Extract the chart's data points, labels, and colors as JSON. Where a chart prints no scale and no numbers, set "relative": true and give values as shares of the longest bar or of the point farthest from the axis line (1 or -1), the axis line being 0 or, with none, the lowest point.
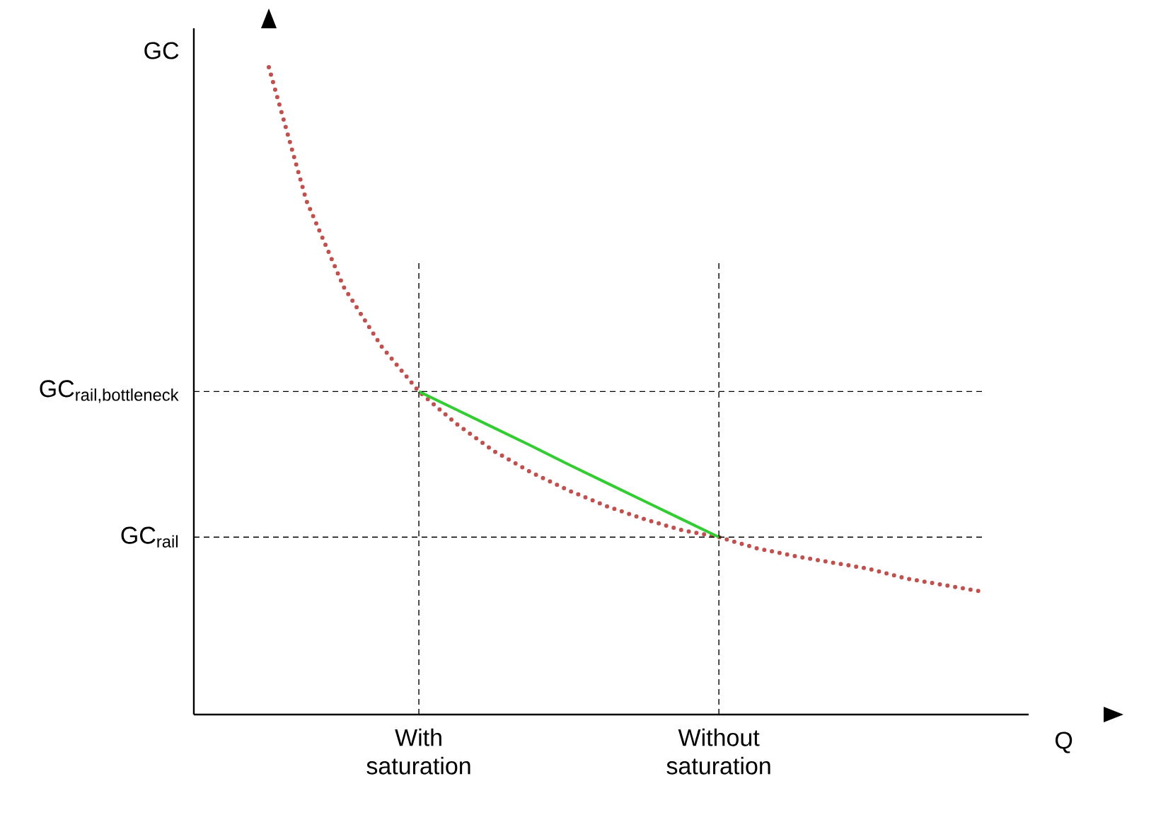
{
  "chart_data": {
    "type": "line",
    "relative": true,
    "xlabel": "Q",
    "ylabel": "GC",
    "marker": "none",
    "categories": [
      null,
      null,
      null,
      null,
      "With saturation",
      null,
      null,
      null,
      null,
      null,
      null,
      null,
      "Without saturation",
      null,
      null,
      null,
      null,
      null,
      null,
      null
    ],
    "series": [
      {
        "color": "#c0504d",
        "line_style": "dotted",
        "values": [
          1.0,
          0.794,
          0.66,
          0.569,
          0.499,
          0.449,
          0.407,
          0.374,
          0.346,
          0.322,
          0.302,
          0.285,
          0.274,
          0.257,
          0.245,
          0.235,
          0.225,
          0.21,
          0.2,
          0.19
        ]
      },
      {
        "color": "#33cc33",
        "line_style": "solid",
        "values": [
          null,
          null,
          null,
          null,
          0.499,
          0.471,
          0.443,
          0.415,
          0.386,
          0.358,
          0.33,
          0.302,
          0.274,
          null,
          null,
          null,
          null,
          null,
          null,
          null
        ]
      }
    ],
    "ref_lines": [
      {
        "axis": "y",
        "value": 0.499,
        "label": "\\text{GC}_{\\text{rail,bottleneck}}",
        "line_style": "dashed"
      },
      {
        "axis": "y",
        "value": 0.274,
        "label": "\\text{GC}_{\\text{rail}}",
        "line_style": "dashed"
      },
      {
        "axis": "x",
        "value": "With saturation",
        "line_style": "dashed"
      },
      {
        "axis": "x",
        "value": "Without saturation",
        "line_style": "dashed"
      }
    ]
  }
}
